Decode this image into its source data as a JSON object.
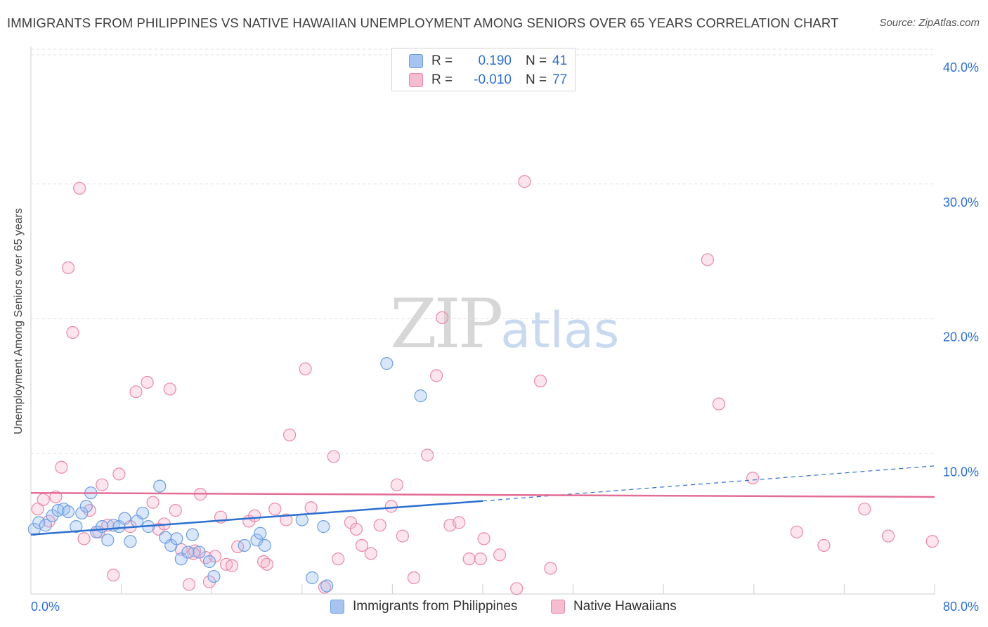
{
  "header": {
    "title": "IMMIGRANTS FROM PHILIPPINES VS NATIVE HAWAIIAN UNEMPLOYMENT AMONG SENIORS OVER 65 YEARS CORRELATION CHART",
    "source": "Source: ZipAtlas.com"
  },
  "watermark": {
    "zip": "ZIP",
    "atlas": "atlas"
  },
  "legend": {
    "rows": [
      {
        "r_label": "R =",
        "r_value": "0.190",
        "n_label": "N =",
        "n_value": "41",
        "color": "#a7c4f0",
        "border": "#6e9fe0"
      },
      {
        "r_label": "R =",
        "r_value": "-0.010",
        "n_label": "N =",
        "n_value": "77",
        "color": "#f6bcd0",
        "border": "#e889a9"
      }
    ]
  },
  "colors": {
    "blue_fill": "rgba(150,186,240,0.35)",
    "blue_stroke": "#6e9fe0",
    "blue_line": "#2b6fd1",
    "pink_fill": "rgba(246,180,204,0.35)",
    "pink_stroke": "#e889a9",
    "pink_line": "#e46d96",
    "grid": "#e2e2e2",
    "axis_label": "#2e6fd0"
  },
  "chart_data": {
    "type": "scatter",
    "title": "IMMIGRANTS FROM PHILIPPINES VS NATIVE HAWAIIAN UNEMPLOYMENT AMONG SENIORS OVER 65 YEARS CORRELATION CHART",
    "xlabel": "",
    "ylabel": "Unemployment Among Seniors over 65 years",
    "xlim": [
      0,
      80
    ],
    "ylim": [
      0,
      40
    ],
    "x_tick_labels": [
      "0.0%",
      "80.0%"
    ],
    "y_ticks": [
      10,
      20,
      30,
      40
    ],
    "y_tick_labels": [
      "10.0%",
      "20.0%",
      "30.0%",
      "40.0%"
    ],
    "grid": true,
    "legend_position": "top-center",
    "series": [
      {
        "name": "Immigrants from Philippines",
        "R": 0.19,
        "N": 41,
        "trend": {
          "x0": 0,
          "y0": 4.4,
          "x1": 40,
          "y1": 6.9,
          "dashed_to_x": 80,
          "dashed_to_y": 9.5
        },
        "points": [
          [
            0.3,
            4.8
          ],
          [
            0.7,
            5.3
          ],
          [
            1.3,
            5.1
          ],
          [
            1.9,
            5.8
          ],
          [
            2.4,
            6.2
          ],
          [
            2.9,
            6.3
          ],
          [
            3.3,
            6.1
          ],
          [
            4.0,
            5.0
          ],
          [
            4.5,
            6.0
          ],
          [
            4.9,
            6.5
          ],
          [
            5.3,
            7.5
          ],
          [
            5.8,
            4.6
          ],
          [
            6.3,
            5.0
          ],
          [
            6.8,
            4.0
          ],
          [
            7.3,
            5.1
          ],
          [
            7.8,
            5.0
          ],
          [
            8.3,
            5.6
          ],
          [
            8.8,
            3.9
          ],
          [
            9.4,
            5.4
          ],
          [
            9.9,
            6.0
          ],
          [
            10.4,
            5.0
          ],
          [
            11.4,
            8.0
          ],
          [
            11.9,
            4.2
          ],
          [
            12.4,
            3.6
          ],
          [
            12.9,
            4.1
          ],
          [
            13.3,
            2.6
          ],
          [
            13.9,
            3.1
          ],
          [
            14.3,
            4.4
          ],
          [
            14.9,
            3.1
          ],
          [
            15.8,
            2.4
          ],
          [
            16.2,
            1.3
          ],
          [
            18.9,
            3.6
          ],
          [
            20.0,
            4.0
          ],
          [
            20.3,
            4.5
          ],
          [
            20.7,
            3.6
          ],
          [
            24.0,
            5.5
          ],
          [
            24.9,
            1.2
          ],
          [
            25.9,
            5.0
          ],
          [
            26.2,
            0.6
          ],
          [
            31.5,
            17.1
          ],
          [
            34.5,
            14.7
          ]
        ]
      },
      {
        "name": "Native Hawaiians",
        "R": -0.01,
        "N": 77,
        "trend": {
          "x0": 0,
          "y0": 7.5,
          "x1": 80,
          "y1": 7.2
        },
        "points": [
          [
            0.6,
            6.3
          ],
          [
            1.1,
            7.0
          ],
          [
            1.6,
            5.4
          ],
          [
            2.2,
            7.2
          ],
          [
            2.7,
            9.4
          ],
          [
            3.3,
            24.2
          ],
          [
            3.7,
            19.4
          ],
          [
            4.3,
            30.1
          ],
          [
            4.7,
            4.1
          ],
          [
            5.2,
            6.2
          ],
          [
            6.0,
            4.6
          ],
          [
            6.3,
            8.1
          ],
          [
            6.8,
            5.1
          ],
          [
            7.3,
            1.4
          ],
          [
            7.8,
            8.9
          ],
          [
            8.8,
            5.0
          ],
          [
            9.3,
            15.0
          ],
          [
            10.3,
            15.7
          ],
          [
            10.8,
            6.8
          ],
          [
            11.3,
            4.8
          ],
          [
            11.8,
            5.2
          ],
          [
            12.3,
            15.2
          ],
          [
            12.8,
            6.2
          ],
          [
            13.3,
            3.3
          ],
          [
            14.0,
            0.7
          ],
          [
            14.5,
            3.2
          ],
          [
            15.0,
            7.4
          ],
          [
            15.5,
            2.7
          ],
          [
            15.8,
            0.9
          ],
          [
            16.3,
            2.8
          ],
          [
            16.8,
            5.7
          ],
          [
            17.3,
            2.2
          ],
          [
            17.8,
            2.1
          ],
          [
            18.3,
            3.5
          ],
          [
            19.3,
            5.4
          ],
          [
            19.8,
            5.8
          ],
          [
            20.6,
            2.4
          ],
          [
            20.9,
            2.2
          ],
          [
            21.6,
            6.3
          ],
          [
            22.6,
            5.5
          ],
          [
            22.9,
            11.8
          ],
          [
            24.3,
            16.7
          ],
          [
            24.8,
            6.4
          ],
          [
            26.0,
            0.5
          ],
          [
            26.8,
            10.2
          ],
          [
            27.2,
            2.6
          ],
          [
            28.3,
            5.3
          ],
          [
            28.8,
            4.8
          ],
          [
            29.3,
            3.6
          ],
          [
            30.1,
            3.0
          ],
          [
            30.9,
            5.1
          ],
          [
            31.9,
            6.5
          ],
          [
            32.4,
            8.1
          ],
          [
            32.9,
            4.3
          ],
          [
            33.9,
            1.2
          ],
          [
            35.1,
            10.3
          ],
          [
            35.9,
            16.2
          ],
          [
            36.4,
            20.5
          ],
          [
            37.1,
            5.1
          ],
          [
            37.9,
            5.3
          ],
          [
            38.8,
            2.6
          ],
          [
            39.8,
            2.6
          ],
          [
            40.1,
            4.1
          ],
          [
            41.5,
            2.9
          ],
          [
            43.0,
            0.4
          ],
          [
            43.7,
            30.6
          ],
          [
            45.1,
            15.8
          ],
          [
            46.0,
            1.9
          ],
          [
            59.9,
            24.8
          ],
          [
            60.9,
            14.1
          ],
          [
            63.9,
            8.6
          ],
          [
            67.8,
            4.6
          ],
          [
            70.2,
            3.6
          ],
          [
            73.8,
            6.3
          ],
          [
            75.9,
            4.3
          ],
          [
            79.8,
            3.9
          ],
          [
            14.4,
            3.0
          ]
        ]
      }
    ]
  }
}
